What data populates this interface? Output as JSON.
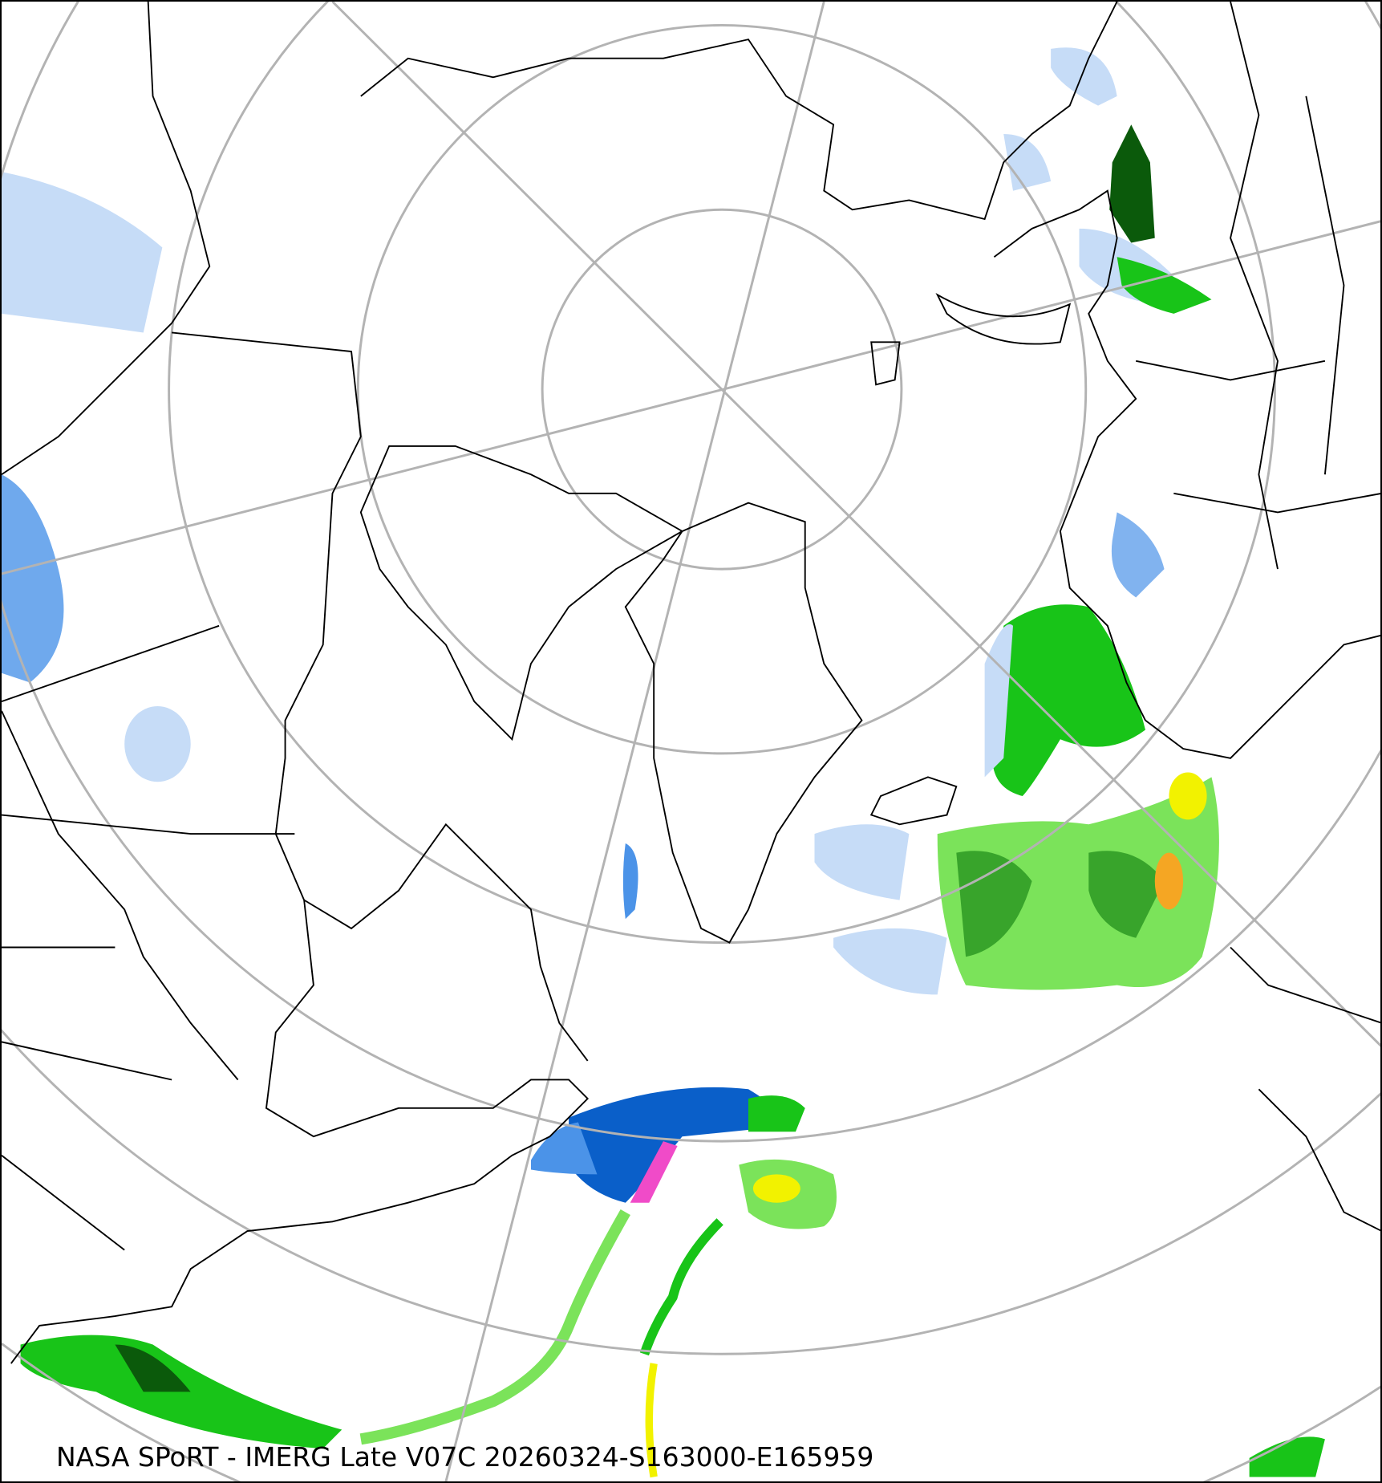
{
  "caption": "NASA SPoRT - IMERG Late V07C 20260324-S163000-E165959",
  "map": {
    "projection": "north-polar-stereographic",
    "graticule_color": "#b3b3b3",
    "coastline_color": "#000000",
    "precip_colors": {
      "light_blue": "#c6dcf7",
      "blue": "#4b93e8",
      "dark_blue": "#0a5fc9",
      "light_green": "#7be35a",
      "green": "#18c418",
      "dark_green": "#0b5a0b",
      "yellow": "#f2f200",
      "orange": "#f5a623",
      "red": "#e32323",
      "pink": "#f04bc8"
    }
  }
}
